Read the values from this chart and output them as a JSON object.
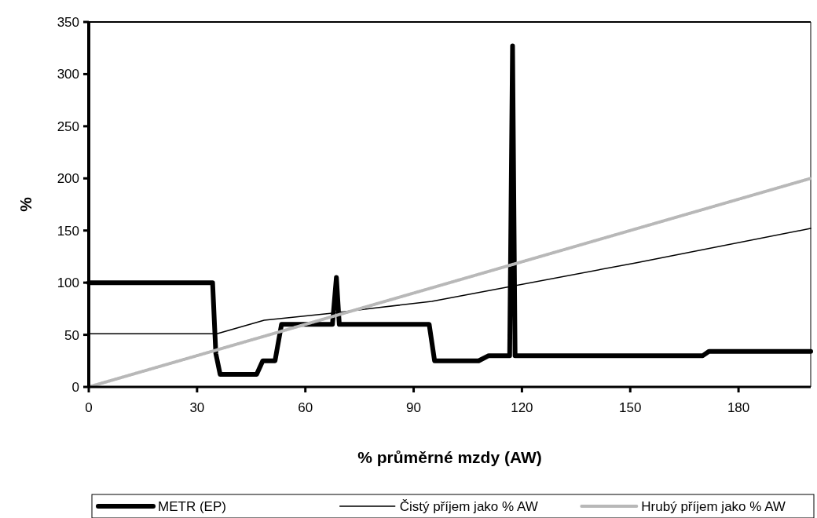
{
  "chart_data": {
    "type": "line",
    "xlabel": "% průměrné mzdy (AW)",
    "ylabel": "%",
    "xlim": [
      0,
      200
    ],
    "xticks": [
      0,
      30,
      60,
      90,
      120,
      150,
      180
    ],
    "ylim": [
      0,
      350
    ],
    "yticks": [
      0,
      50,
      100,
      150,
      200,
      250,
      300,
      350
    ],
    "grid": false,
    "legend": "bottom",
    "series": [
      {
        "name": "METR (EP)",
        "color": "#000000",
        "x": [
          0,
          34.3,
          35.2,
          36.4,
          46.5,
          48.2,
          51.6,
          53.4,
          67.5,
          68.6,
          69.4,
          94.3,
          95.8,
          108,
          110.8,
          116.6,
          117.4,
          118.1,
          170.1,
          171.8,
          200
        ],
        "values": [
          100,
          100,
          32,
          12,
          12,
          25,
          25,
          60,
          60,
          105,
          60,
          60,
          25,
          25,
          30,
          30,
          327,
          30,
          30,
          34,
          34
        ]
      },
      {
        "name": "Čistý příjem jako % AW",
        "color": "#000000",
        "x": [
          0,
          35.5,
          48.6,
          54.4,
          68,
          80,
          95,
          151.5,
          200
        ],
        "values": [
          51,
          51,
          64,
          66,
          71,
          76,
          82,
          119,
          152
        ]
      },
      {
        "name": "Hrubý příjem jako % AW",
        "color": "#b8b8b8",
        "line_style": "dotted",
        "x": [
          0,
          50,
          100,
          150,
          200
        ],
        "values": [
          0,
          50,
          100,
          150,
          200
        ]
      }
    ]
  }
}
